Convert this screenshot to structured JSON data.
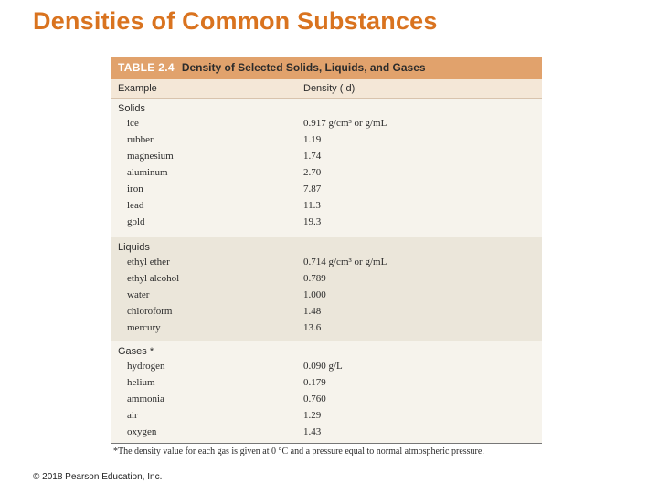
{
  "slide": {
    "title": "Densities of Common Substances",
    "copyright": "© 2018 Pearson Education, Inc."
  },
  "table": {
    "number": "TABLE 2.4",
    "title": "Density of Selected Solids, Liquids, and Gases",
    "col_example": "Example",
    "col_density": "Density ( d)",
    "groups": [
      {
        "name": "Solids",
        "rows": [
          {
            "name": "ice",
            "value": "0.917 g/cm³ or g/mL"
          },
          {
            "name": "rubber",
            "value": "1.19"
          },
          {
            "name": "magnesium",
            "value": "1.74"
          },
          {
            "name": "aluminum",
            "value": "2.70"
          },
          {
            "name": "iron",
            "value": "7.87"
          },
          {
            "name": "lead",
            "value": "11.3"
          },
          {
            "name": "gold",
            "value": "19.3"
          }
        ]
      },
      {
        "name": "Liquids",
        "rows": [
          {
            "name": "ethyl ether",
            "value": "0.714 g/cm³ or g/mL"
          },
          {
            "name": "ethyl alcohol",
            "value": "0.789"
          },
          {
            "name": "water",
            "value": "1.000"
          },
          {
            "name": "chloroform",
            "value": "1.48"
          },
          {
            "name": "mercury",
            "value": "13.6"
          }
        ]
      },
      {
        "name": "Gases *",
        "rows": [
          {
            "name": "hydrogen",
            "value": "0.090 g/L"
          },
          {
            "name": "helium",
            "value": "0.179"
          },
          {
            "name": "ammonia",
            "value": "0.760"
          },
          {
            "name": "air",
            "value": "1.29"
          },
          {
            "name": "oxygen",
            "value": "1.43"
          }
        ]
      }
    ],
    "footnote": "*The density value for each gas is given at 0 °C and a pressure equal to normal atmospheric pressure."
  }
}
